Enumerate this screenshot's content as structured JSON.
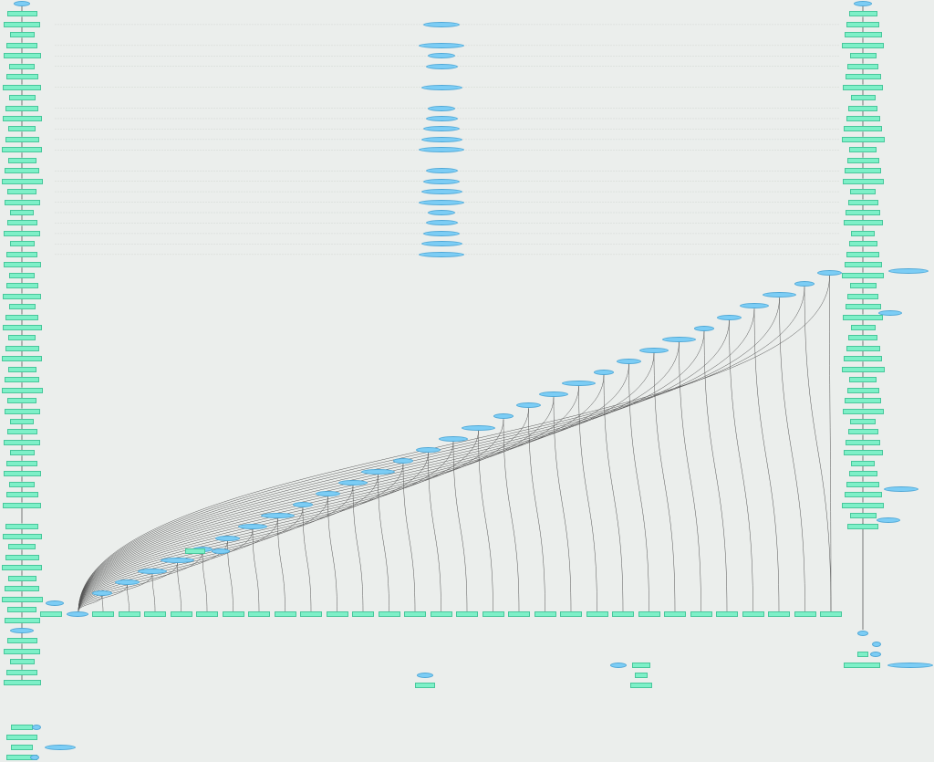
{
  "colors": {
    "background": "#ebeeec",
    "rect_node": "#7ef0c8",
    "oval_node": "#7ccdf5",
    "edge": "#000000",
    "guide_line": "#c9cfcc"
  },
  "legend": []
}
